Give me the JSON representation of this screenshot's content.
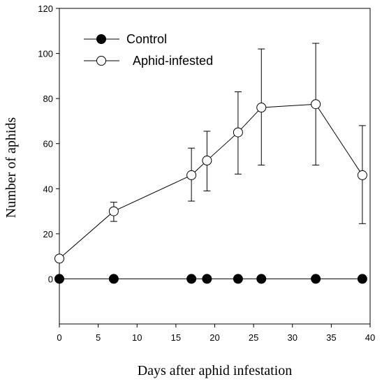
{
  "chart_data": {
    "type": "line",
    "title": "",
    "xlabel": "Days after aphid infestation",
    "ylabel": "Number of aphids",
    "xlim": [
      0,
      40
    ],
    "ylim": [
      -20,
      120
    ],
    "xticks": [
      0,
      5,
      10,
      15,
      20,
      25,
      30,
      35,
      40
    ],
    "yticks": [
      0,
      20,
      40,
      60,
      80,
      100,
      120
    ],
    "grid": false,
    "legend_position": "top-left",
    "series": [
      {
        "name": "Control",
        "marker": "filled-circle",
        "color": "#000000",
        "x": [
          0,
          7,
          17,
          19,
          23,
          26,
          33,
          39
        ],
        "y": [
          0,
          0,
          0,
          0,
          0,
          0,
          0,
          0
        ]
      },
      {
        "name": "Aphid-infested",
        "marker": "open-circle",
        "color": "#000000",
        "x": [
          0,
          7,
          17,
          19,
          23,
          26,
          33,
          39
        ],
        "y": [
          9,
          30,
          46,
          52.5,
          65,
          76,
          77.5,
          46
        ],
        "err_low": [
          9,
          25.5,
          34.5,
          39,
          46.5,
          50.5,
          50.5,
          24.5
        ],
        "err_high": [
          9,
          34,
          58,
          65.5,
          83,
          102,
          104.5,
          68
        ]
      }
    ]
  }
}
